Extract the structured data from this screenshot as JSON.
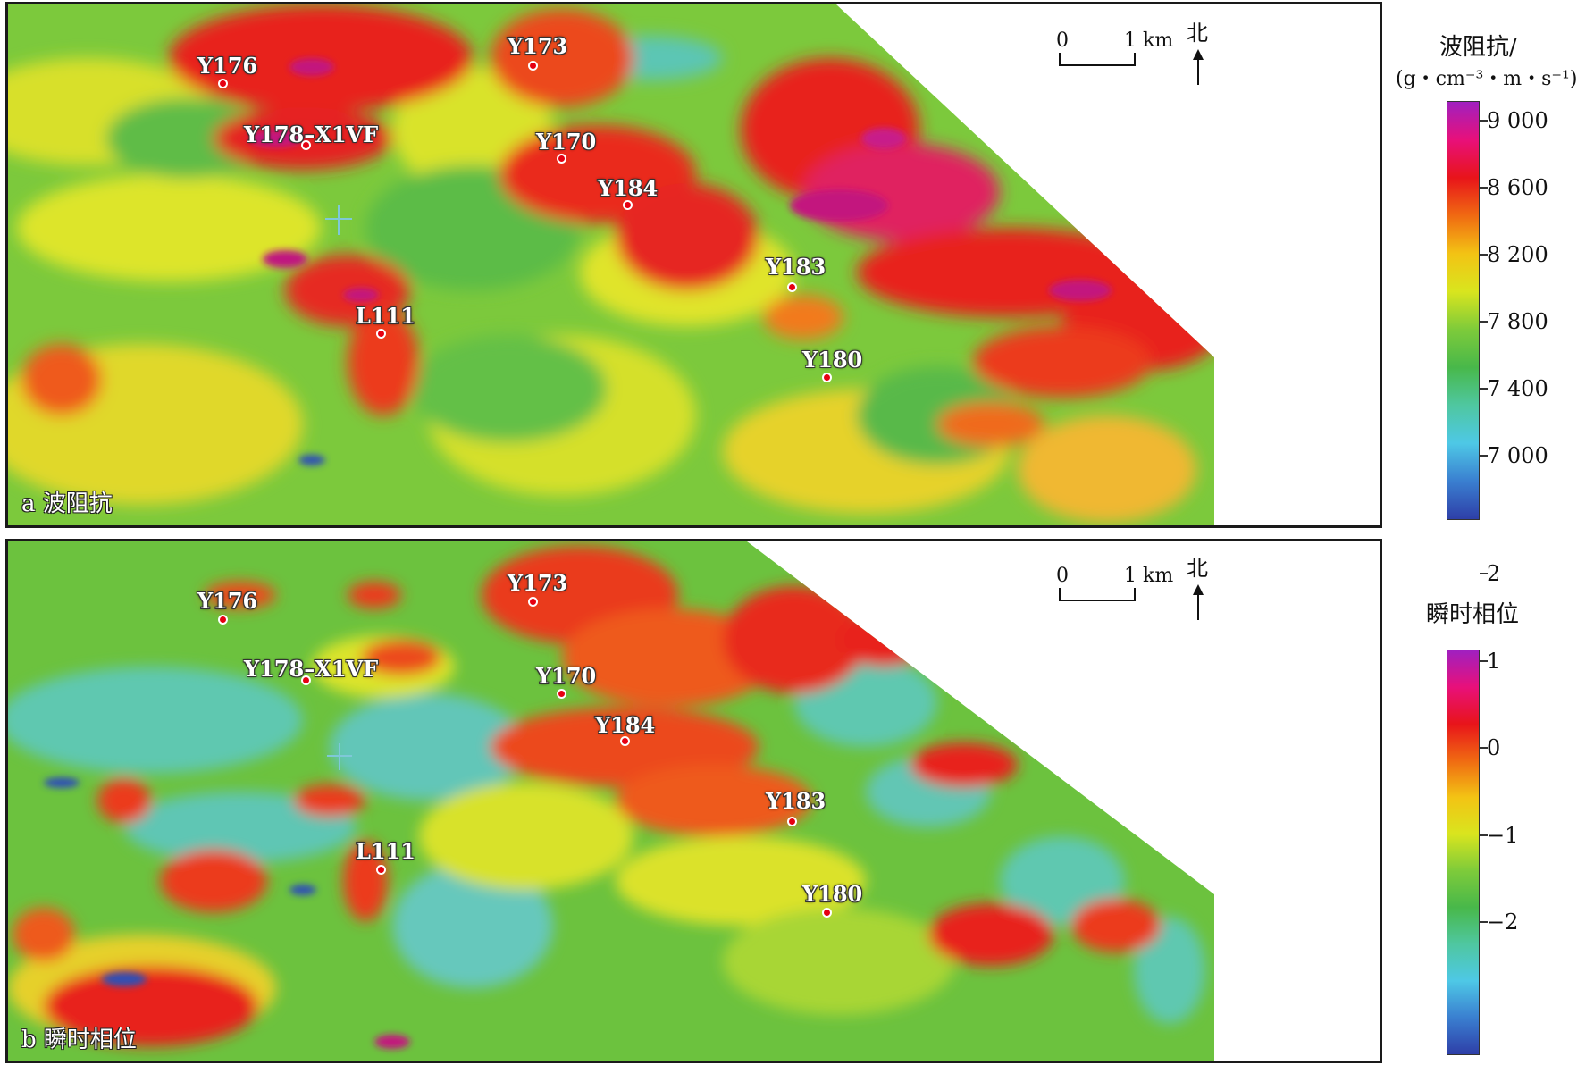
{
  "panel_a": {
    "caption": "a 波阻抗",
    "wells": [
      {
        "name": "Y176"
      },
      {
        "name": "Y173"
      },
      {
        "name": "Y178–X1VF"
      },
      {
        "name": "Y170"
      },
      {
        "name": "Y184"
      },
      {
        "name": "Y183"
      },
      {
        "name": "L111"
      },
      {
        "name": "Y180"
      }
    ],
    "scale": {
      "start": "0",
      "end": "1 km"
    },
    "north": "北",
    "legend": {
      "title": "波阻抗/",
      "unit": "(g・cm⁻³・m・s⁻¹)",
      "ticks": [
        "9 000",
        "8 600",
        "8 200",
        "7 800",
        "7 400",
        "7 000"
      ],
      "colors": [
        "#a020c0",
        "#e8107a",
        "#e8141a",
        "#f06a12",
        "#f3c314",
        "#d9e51e",
        "#7ecb3a",
        "#48b84a",
        "#4fc7a0",
        "#4ec8e6",
        "#3a7fd0",
        "#2e3fa8"
      ]
    }
  },
  "panel_b": {
    "caption": "b 瞬时相位",
    "wells": [
      {
        "name": "Y176"
      },
      {
        "name": "Y173"
      },
      {
        "name": "Y178–X1VF"
      },
      {
        "name": "Y170"
      },
      {
        "name": "Y184"
      },
      {
        "name": "Y183"
      },
      {
        "name": "L111"
      },
      {
        "name": "Y180"
      }
    ],
    "scale": {
      "start": "0",
      "end": "1 km"
    },
    "north": "北",
    "legend": {
      "title": "瞬时相位",
      "ticks": [
        "2",
        "1",
        "0",
        "−1",
        "−2"
      ],
      "colors": [
        "#a020c0",
        "#e8107a",
        "#e8141a",
        "#f06a12",
        "#f3c314",
        "#d9e51e",
        "#7ecb3a",
        "#48b84a",
        "#4fc7a0",
        "#4ec8e6",
        "#3a7fd0",
        "#2e3fa8"
      ]
    }
  },
  "palette": {
    "red": "#e8231c",
    "orange": "#f28a1e",
    "yellow": "#e4e52a",
    "green": "#6cc23e",
    "cyan": "#5ec8c8",
    "magenta": "#c3137e",
    "blue": "#2f4fb5"
  }
}
